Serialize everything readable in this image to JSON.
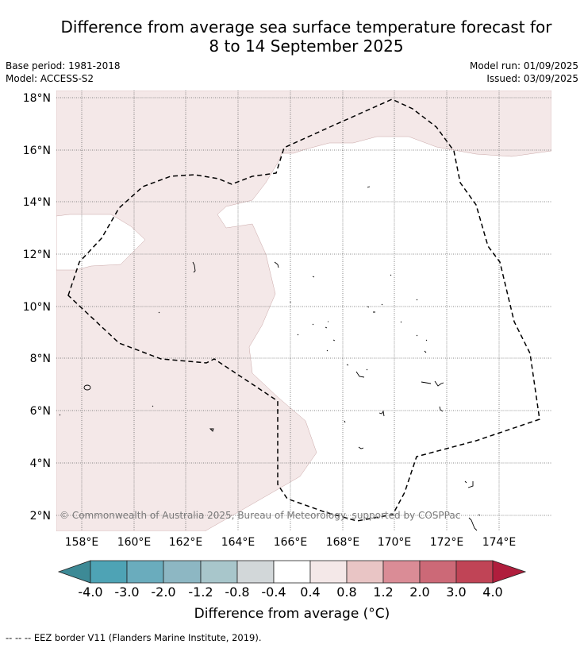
{
  "title": {
    "line1": "Difference from average sea surface temperature forecast for",
    "line2": "8 to 14 September 2025"
  },
  "meta": {
    "base_period": "Base period: 1981-2018",
    "model": "Model: ACCESS-S2",
    "model_run": "Model run: 01/09/2025",
    "issued": "Issued: 03/09/2025"
  },
  "map": {
    "lat_labels": [
      "18°N",
      "16°N",
      "14°N",
      "12°N",
      "10°N",
      "8°N",
      "6°N",
      "4°N",
      "2°N"
    ],
    "lon_labels": [
      "158°E",
      "160°E",
      "162°E",
      "164°E",
      "166°E",
      "168°E",
      "170°E",
      "172°E",
      "174°E"
    ],
    "copyright": "© Commonwealth of Australia 2025, Bureau of Meteorology, supported by COSPPac",
    "anomaly_fill_color": "#f4e8e8",
    "anomaly_fill_range": "0.4 to 0.8",
    "border_style": "dashed black"
  },
  "colorbar": {
    "tick_labels": [
      "-4.0",
      "-3.0",
      "-2.0",
      "-1.2",
      "-0.8",
      "-0.4",
      "0.4",
      "0.8",
      "1.2",
      "2.0",
      "3.0",
      "4.0"
    ],
    "colors": [
      "#3d8a96",
      "#4ea3b5",
      "#6aacbd",
      "#8db7c3",
      "#a8c6cb",
      "#d2d7d9",
      "#ffffff",
      "#f4e8e8",
      "#e9c5c5",
      "#da8c96",
      "#cc6977",
      "#c04456",
      "#b01e3d"
    ],
    "label": "Difference from average (°C)"
  },
  "footnote": "--  --  -- EEZ border V11 (Flanders Marine Institute, 2019)."
}
